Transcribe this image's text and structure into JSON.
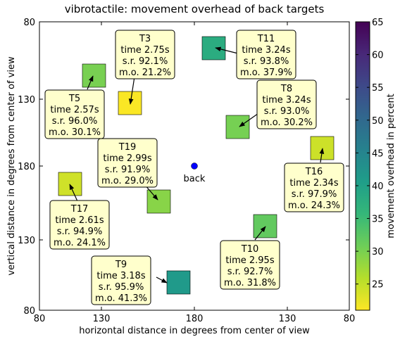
{
  "chart_data": {
    "type": "scatter",
    "title": "vibrotactile: movement overhead of back targets",
    "xlabel": "horizontal distance in degrees from center of view",
    "ylabel": "vertical distance in degrees from center of view",
    "x_ticks": [
      "80",
      "130",
      "180",
      "130",
      "80"
    ],
    "y_ticks": [
      "80",
      "130",
      "180",
      "130",
      "80"
    ],
    "colorbar": {
      "label": "movement overhead in percent",
      "range": [
        21,
        65
      ],
      "ticks": [
        "25",
        "30",
        "35",
        "40",
        "45",
        "50",
        "55",
        "60",
        "65"
      ],
      "colormap": "viridis_r"
    },
    "center": {
      "label": "back",
      "color": "#0000ff"
    },
    "targets": [
      {
        "name": "T3",
        "time": "2.75s",
        "sr": "92.1%",
        "mo": "21.2%",
        "mo_value": 21.2
      },
      {
        "name": "T11",
        "time": "3.24s",
        "sr": "93.8%",
        "mo": "37.9%",
        "mo_value": 37.9
      },
      {
        "name": "T5",
        "time": "2.57s",
        "sr": "96.0%",
        "mo": "30.1%",
        "mo_value": 30.1
      },
      {
        "name": "T8",
        "time": "3.24s",
        "sr": "93.0%",
        "mo": "30.2%",
        "mo_value": 30.2
      },
      {
        "name": "T19",
        "time": "2.99s",
        "sr": "91.9%",
        "mo": "29.0%",
        "mo_value": 29.0
      },
      {
        "name": "T16",
        "time": "2.34s",
        "sr": "97.9%",
        "mo": "24.3%",
        "mo_value": 24.3
      },
      {
        "name": "T17",
        "time": "2.61s",
        "sr": "94.9%",
        "mo": "24.1%",
        "mo_value": 24.1
      },
      {
        "name": "T10",
        "time": "2.95s",
        "sr": "92.7%",
        "mo": "31.8%",
        "mo_value": 31.8
      },
      {
        "name": "T9",
        "time": "3.18s",
        "sr": "95.9%",
        "mo": "41.3%",
        "mo_value": 41.3
      }
    ]
  }
}
